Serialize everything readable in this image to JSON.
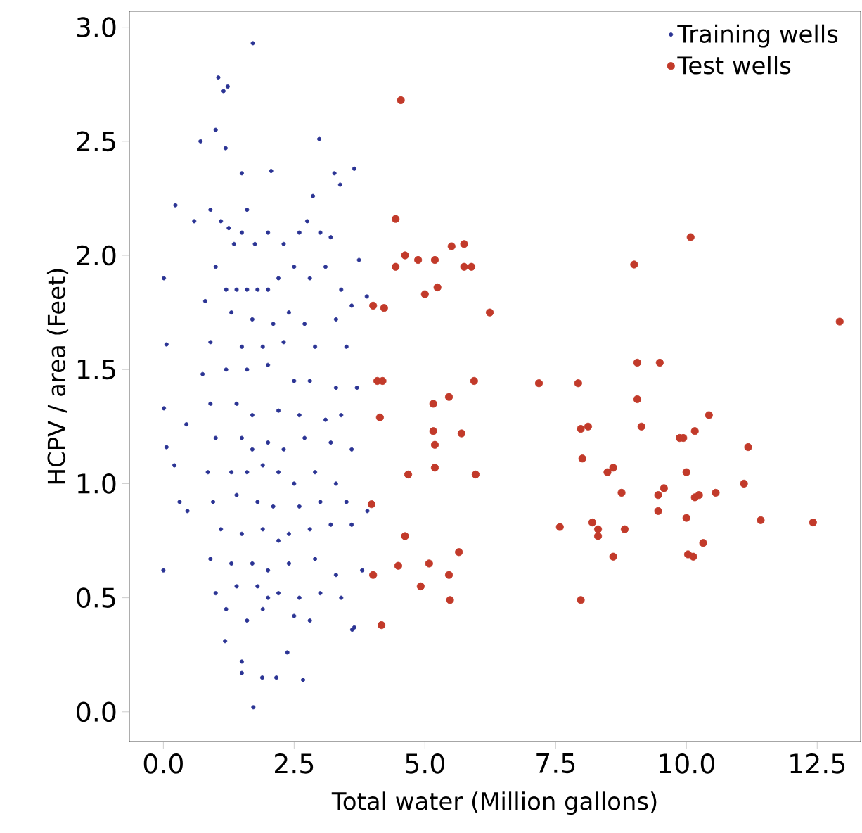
{
  "chart_data": {
    "type": "scatter",
    "xlabel": "Total water (Million gallons)",
    "ylabel": "HCPV / area (Feet)",
    "xlim": [
      -0.65,
      13.33
    ],
    "ylim": [
      -0.13,
      3.07
    ],
    "xticks": [
      {
        "value": 0,
        "label": "0.0"
      },
      {
        "value": 2.5,
        "label": "2.5"
      },
      {
        "value": 5,
        "label": "5.0"
      },
      {
        "value": 7.5,
        "label": "7.5"
      },
      {
        "value": 10,
        "label": "10.0"
      },
      {
        "value": 12.5,
        "label": "12.5"
      }
    ],
    "yticks": [
      {
        "value": 0,
        "label": "0.0"
      },
      {
        "value": 0.5,
        "label": "0.5"
      },
      {
        "value": 1,
        "label": "1.0"
      },
      {
        "value": 1.5,
        "label": "1.5"
      },
      {
        "value": 2,
        "label": "2.0"
      },
      {
        "value": 2.5,
        "label": "2.5"
      },
      {
        "value": 3,
        "label": "3.0"
      }
    ],
    "grid": false,
    "legend": "top right",
    "series": [
      {
        "name": "Training wells",
        "color": "#2b3494",
        "x": [
          1.71,
          1.05,
          1.15,
          1.23,
          1.0,
          0.71,
          1.19,
          2.98,
          0.01,
          0.06,
          0.01,
          0.06,
          0,
          0.31,
          0.46,
          0.44,
          0.21,
          1.72,
          1.5,
          1.89,
          2.16,
          2.67,
          2.37,
          1.18,
          3.61,
          1.5,
          2.86,
          3.27,
          3.65,
          3.38,
          2.06,
          1.5,
          0.23,
          0.59,
          3.74,
          3.89,
          0.9,
          1.1,
          1.25,
          1.35,
          1.5,
          1.6,
          1.75,
          2.0,
          2.3,
          2.6,
          2.75,
          3.0,
          3.2,
          1.0,
          1.2,
          1.4,
          1.6,
          1.8,
          2.0,
          2.2,
          2.5,
          2.8,
          3.1,
          3.4,
          3.6,
          0.8,
          1.3,
          1.7,
          2.1,
          2.4,
          2.7,
          3.3,
          0.9,
          1.5,
          1.9,
          2.3,
          2.9,
          3.5,
          0.75,
          1.2,
          1.6,
          2.0,
          2.5,
          2.8,
          3.3,
          3.7,
          0.9,
          1.4,
          1.7,
          2.2,
          2.6,
          3.1,
          3.4,
          1.0,
          1.5,
          1.7,
          2.0,
          2.3,
          2.7,
          3.2,
          3.6,
          0.85,
          1.3,
          1.6,
          1.9,
          2.2,
          2.5,
          2.9,
          3.3,
          0.95,
          1.4,
          1.8,
          2.1,
          2.6,
          3.0,
          3.5,
          3.9,
          1.1,
          1.5,
          1.9,
          2.2,
          2.4,
          2.8,
          3.2,
          3.6,
          0.9,
          1.3,
          1.7,
          2.0,
          2.4,
          2.9,
          3.3,
          3.8,
          1.0,
          1.4,
          1.8,
          2.0,
          2.2,
          2.6,
          3.0,
          3.4,
          1.2,
          1.9,
          2.5,
          1.6,
          2.8,
          3.65
        ],
        "values": [
          2.93,
          2.78,
          2.72,
          2.74,
          2.55,
          2.5,
          2.47,
          2.51,
          1.9,
          1.61,
          1.33,
          1.16,
          0.62,
          0.92,
          0.88,
          1.26,
          1.08,
          0.02,
          0.17,
          0.15,
          0.15,
          0.14,
          0.26,
          0.31,
          0.36,
          0.22,
          2.26,
          2.36,
          2.38,
          2.31,
          2.37,
          2.36,
          2.22,
          2.15,
          1.98,
          1.82,
          2.2,
          2.15,
          2.12,
          2.05,
          2.1,
          2.2,
          2.05,
          2.1,
          2.05,
          2.1,
          2.15,
          2.1,
          2.08,
          1.95,
          1.85,
          1.85,
          1.85,
          1.85,
          1.85,
          1.9,
          1.95,
          1.9,
          1.95,
          1.85,
          1.78,
          1.8,
          1.75,
          1.72,
          1.7,
          1.75,
          1.7,
          1.72,
          1.62,
          1.6,
          1.6,
          1.62,
          1.6,
          1.6,
          1.48,
          1.5,
          1.5,
          1.52,
          1.45,
          1.45,
          1.42,
          1.42,
          1.35,
          1.35,
          1.3,
          1.32,
          1.3,
          1.28,
          1.3,
          1.2,
          1.2,
          1.15,
          1.18,
          1.15,
          1.2,
          1.18,
          1.15,
          1.05,
          1.05,
          1.05,
          1.08,
          1.05,
          1.0,
          1.05,
          1.0,
          0.92,
          0.95,
          0.92,
          0.9,
          0.9,
          0.92,
          0.92,
          0.88,
          0.8,
          0.78,
          0.8,
          0.75,
          0.78,
          0.8,
          0.82,
          0.82,
          0.67,
          0.65,
          0.65,
          0.62,
          0.65,
          0.67,
          0.6,
          0.62,
          0.52,
          0.55,
          0.55,
          0.5,
          0.52,
          0.5,
          0.52,
          0.5,
          0.45,
          0.45,
          0.42,
          0.4,
          0.4,
          0.37
        ]
      },
      {
        "name": "Test wells",
        "color": "#c23a2a",
        "x": [
          4.54,
          4.44,
          4.62,
          4.87,
          5.51,
          5.75,
          5.19,
          4.44,
          5.75,
          5.89,
          5.0,
          5.24,
          4.01,
          4.22,
          6.24,
          4.09,
          4.19,
          5.94,
          7.18,
          7.93,
          5.46,
          5.16,
          4.14,
          5.7,
          5.16,
          5.19,
          7.98,
          8.12,
          8.01,
          5.19,
          4.68,
          5.97,
          8.49,
          8.6,
          3.98,
          7.58,
          8.2,
          8.31,
          8.31,
          4.62,
          8.6,
          5.65,
          5.08,
          4.49,
          4.01,
          5.46,
          4.92,
          5.48,
          7.98,
          4.17,
          10.08,
          9.0,
          12.93,
          9.06,
          9.49,
          9.06,
          10.43,
          9.14,
          10.16,
          9.87,
          9.94,
          11.18,
          10.0,
          8.76,
          9.46,
          9.57,
          11.1,
          10.16,
          10.24,
          10.56,
          9.46,
          10.0,
          11.42,
          12.42,
          8.82,
          10.32,
          10.03,
          10.13
        ],
        "values": [
          2.68,
          2.16,
          2.0,
          1.98,
          2.04,
          2.05,
          1.98,
          1.95,
          1.95,
          1.95,
          1.83,
          1.86,
          1.78,
          1.77,
          1.75,
          1.45,
          1.45,
          1.45,
          1.44,
          1.44,
          1.38,
          1.35,
          1.29,
          1.22,
          1.23,
          1.17,
          1.24,
          1.25,
          1.11,
          1.07,
          1.04,
          1.04,
          1.05,
          1.07,
          0.91,
          0.81,
          0.83,
          0.8,
          0.77,
          0.77,
          0.68,
          0.7,
          0.65,
          0.64,
          0.6,
          0.6,
          0.55,
          0.49,
          0.49,
          0.38,
          2.08,
          1.96,
          1.71,
          1.53,
          1.53,
          1.37,
          1.3,
          1.25,
          1.23,
          1.2,
          1.2,
          1.16,
          1.05,
          0.96,
          0.95,
          0.98,
          1.0,
          0.94,
          0.95,
          0.96,
          0.88,
          0.85,
          0.84,
          0.83,
          0.8,
          0.74,
          0.69,
          0.68
        ]
      }
    ]
  }
}
